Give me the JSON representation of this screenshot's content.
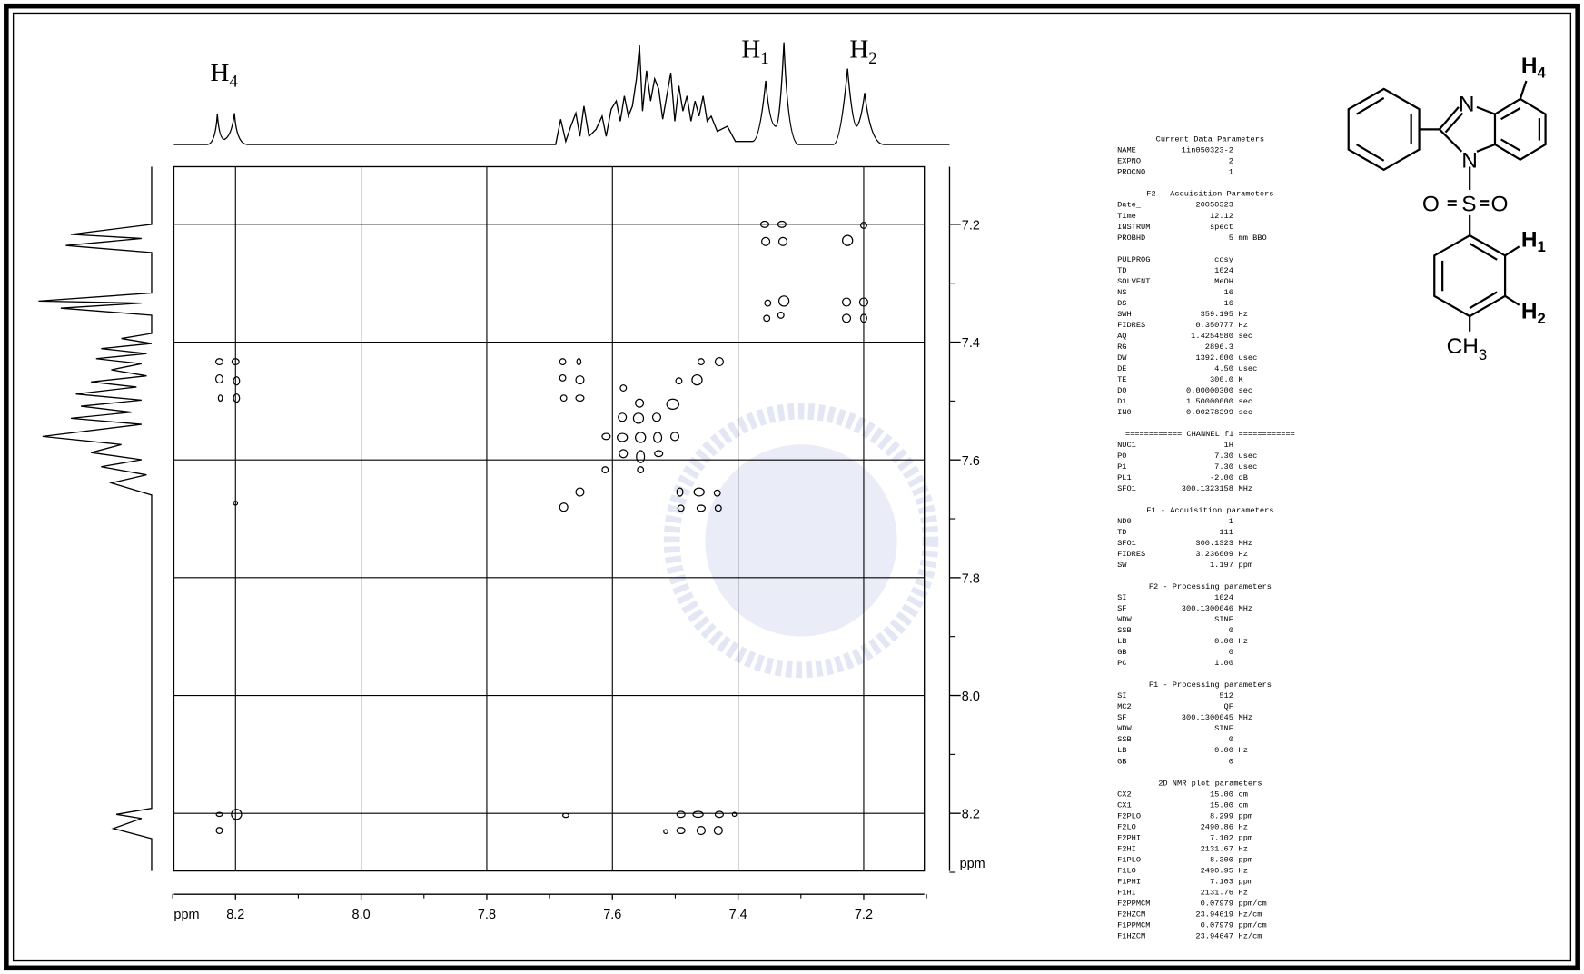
{
  "spectrum": {
    "peak_labels": [
      {
        "base": "H",
        "sub": "4"
      },
      {
        "base": "H",
        "sub": "1"
      },
      {
        "base": "H",
        "sub": "2"
      }
    ],
    "f2_axis": {
      "unit": "ppm",
      "ticks": [
        "8.2",
        "8.0",
        "7.8",
        "7.6",
        "7.4",
        "7.2"
      ]
    },
    "f1_axis": {
      "unit": "ppm",
      "ticks": [
        "7.2",
        "7.4",
        "7.6",
        "7.8",
        "8.0",
        "8.2"
      ]
    }
  },
  "parameters": {
    "sections": [
      {
        "title": "Current Data Parameters",
        "rows": [
          [
            "NAME",
            "1in050323-2"
          ],
          [
            "EXPNO",
            "2"
          ],
          [
            "PROCNO",
            "1"
          ]
        ]
      },
      {
        "title": "F2 - Acquisition Parameters",
        "rows": [
          [
            "Date_",
            "20050323"
          ],
          [
            "Time",
            "12.12"
          ],
          [
            "INSTRUM",
            "spect"
          ],
          [
            "PROBHD",
            "5",
            "mm BBO"
          ]
        ]
      },
      {
        "rows": [
          [
            "PULPROG",
            "cosy"
          ],
          [
            "TD",
            "1024"
          ],
          [
            "SOLVENT",
            "MeOH"
          ],
          [
            "NS",
            "16"
          ],
          [
            "DS",
            "16"
          ],
          [
            "SWH",
            "359.195",
            "Hz"
          ],
          [
            "FIDRES",
            "0.350777",
            "Hz"
          ],
          [
            "AQ",
            "1.4254580",
            "sec"
          ],
          [
            "RG",
            "2896.3"
          ],
          [
            "DW",
            "1392.000",
            "usec"
          ],
          [
            "DE",
            "4.50",
            "usec"
          ],
          [
            "TE",
            "300.0",
            "K"
          ],
          [
            "D0",
            "0.00000300",
            "sec"
          ],
          [
            "D1",
            "1.50000000",
            "sec"
          ],
          [
            "IN0",
            "0.00278399",
            "sec"
          ]
        ]
      },
      {
        "title": "============ CHANNEL f1 ============",
        "rows": [
          [
            "NUC1",
            "1H"
          ],
          [
            "P0",
            "7.30",
            "usec"
          ],
          [
            "P1",
            "7.30",
            "usec"
          ],
          [
            "PL1",
            "-2.00",
            "dB"
          ],
          [
            "SFO1",
            "300.1323158",
            "MHz"
          ]
        ]
      },
      {
        "title": "F1 - Acquisition parameters",
        "rows": [
          [
            "ND0",
            "1"
          ],
          [
            "TD",
            "111"
          ],
          [
            "SFO1",
            "300.1323",
            "MHz"
          ],
          [
            "FIDRES",
            "3.236009",
            "Hz"
          ],
          [
            "SW",
            "1.197",
            "ppm"
          ]
        ]
      },
      {
        "title": "F2 - Processing parameters",
        "rows": [
          [
            "SI",
            "1024"
          ],
          [
            "SF",
            "300.1300046",
            "MHz"
          ],
          [
            "WDW",
            "SINE"
          ],
          [
            "SSB",
            "0"
          ],
          [
            "LB",
            "0.00",
            "Hz"
          ],
          [
            "GB",
            "0"
          ],
          [
            "PC",
            "1.00"
          ]
        ]
      },
      {
        "title": "F1 - Processing parameters",
        "rows": [
          [
            "SI",
            "512"
          ],
          [
            "MC2",
            "QF"
          ],
          [
            "SF",
            "300.1300045",
            "MHz"
          ],
          [
            "WDW",
            "SINE"
          ],
          [
            "SSB",
            "0"
          ],
          [
            "LB",
            "0.00",
            "Hz"
          ],
          [
            "GB",
            "0"
          ]
        ]
      },
      {
        "title": "2D NMR plot parameters",
        "rows": [
          [
            "CX2",
            "15.00",
            "cm"
          ],
          [
            "CX1",
            "15.00",
            "cm"
          ],
          [
            "F2PLO",
            "8.299",
            "ppm"
          ],
          [
            "F2LO",
            "2490.86",
            "Hz"
          ],
          [
            "F2PHI",
            "7.102",
            "ppm"
          ],
          [
            "F2HI",
            "2131.67",
            "Hz"
          ],
          [
            "F1PLO",
            "8.300",
            "ppm"
          ],
          [
            "F1LO",
            "2490.95",
            "Hz"
          ],
          [
            "F1PHI",
            "7.103",
            "ppm"
          ],
          [
            "F1HI",
            "2131.76",
            "Hz"
          ],
          [
            "F2PPMCM",
            "0.07979",
            "ppm/cm"
          ],
          [
            "F2HZCM",
            "23.94619",
            "Hz/cm"
          ],
          [
            "F1PPMCM",
            "0.07979",
            "ppm/cm"
          ],
          [
            "F1HZCM",
            "23.94647",
            "Hz/cm"
          ]
        ]
      }
    ]
  },
  "structure": {
    "atoms": [
      "N",
      "N",
      "O",
      "S",
      "O",
      "CH",
      "3"
    ],
    "labels": [
      {
        "base": "H",
        "sub": "4"
      },
      {
        "base": "H",
        "sub": "1"
      },
      {
        "base": "H",
        "sub": "2"
      }
    ]
  }
}
